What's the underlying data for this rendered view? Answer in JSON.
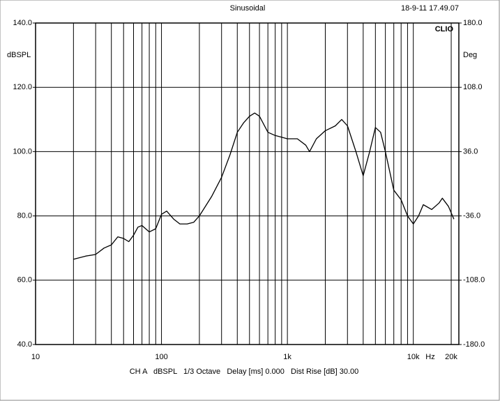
{
  "chart_data": {
    "type": "line",
    "title": "Sinusoidal",
    "timestamp": "18-9-11 17.49.07",
    "brand": "CLIO",
    "y_label": "dBSPL",
    "y2_label": "Deg",
    "x_unit": "Hz",
    "footer": "CH A   dBSPL   1/3 Octave   Delay [ms] 0.000   Dist Rise [dB] 30.00",
    "log_x": true,
    "grid": true,
    "xlim": [
      10,
      23000
    ],
    "xticks": [
      10,
      100,
      {
        "value": 1000,
        "label": "1k"
      },
      {
        "value": 10000,
        "label": "10k"
      },
      {
        "value": 20000,
        "label": "20k"
      }
    ],
    "xminor_ticks": [
      20,
      30,
      40,
      50,
      60,
      70,
      80,
      90,
      200,
      300,
      400,
      500,
      600,
      700,
      800,
      900,
      2000,
      3000,
      4000,
      5000,
      6000,
      7000,
      8000,
      9000
    ],
    "ylim": [
      40,
      140
    ],
    "yticks": [
      {
        "value": 40,
        "label": "40.0"
      },
      {
        "value": 60,
        "label": "60.0"
      },
      {
        "value": 80,
        "label": "80.0"
      },
      {
        "value": 100,
        "label": "100.0"
      },
      {
        "value": 120,
        "label": "120.0"
      },
      {
        "value": 140,
        "label": "140.0"
      }
    ],
    "y2lim": [
      -180,
      180
    ],
    "y2ticks": [
      {
        "value": -180,
        "label": "-180.0"
      },
      {
        "value": -108,
        "label": "-108.0"
      },
      {
        "value": -36,
        "label": "-36.0"
      },
      {
        "value": 36,
        "label": "36.0"
      },
      {
        "value": 108,
        "label": "108.0"
      },
      {
        "value": 180,
        "label": "180.0"
      }
    ],
    "x": [
      20,
      25,
      30,
      35,
      40,
      45,
      50,
      55,
      60,
      65,
      70,
      80,
      90,
      100,
      110,
      125,
      140,
      160,
      180,
      200,
      250,
      300,
      350,
      400,
      450,
      500,
      550,
      600,
      700,
      800,
      900,
      1000,
      1200,
      1400,
      1500,
      1700,
      2000,
      2400,
      2700,
      3000,
      3500,
      4000,
      4500,
      5000,
      5500,
      6000,
      7000,
      8000,
      9000,
      10000,
      11000,
      12000,
      14000,
      16000,
      17000,
      19000,
      21000
    ],
    "series": [
      {
        "color": "#000000",
        "values": [
          66.5,
          67.5,
          68,
          70,
          71,
          73.5,
          73,
          72,
          74,
          76.5,
          77,
          75,
          76,
          80.5,
          81.5,
          79,
          77.5,
          77.5,
          78,
          80,
          86,
          92,
          99,
          106,
          109,
          111,
          112,
          111,
          106,
          105,
          104.5,
          104,
          104,
          102,
          100,
          104,
          106.5,
          108,
          110,
          108,
          100,
          92.5,
          100,
          107.5,
          106,
          100,
          88,
          85,
          80,
          77.5,
          80,
          83.5,
          82,
          84,
          85.5,
          83,
          79
        ]
      }
    ]
  }
}
